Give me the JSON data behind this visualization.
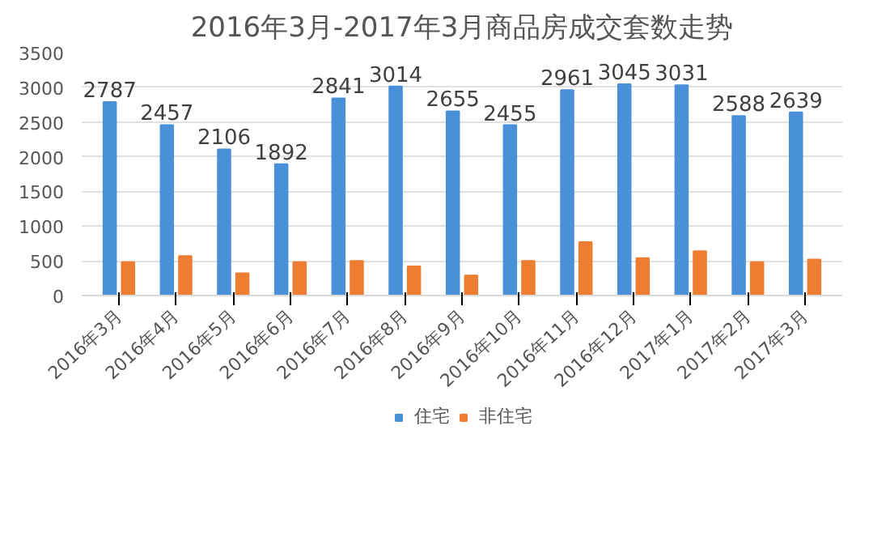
{
  "chart_data": {
    "type": "bar",
    "title": "2016年3月-2017年3月商品房成交套数走势",
    "categories": [
      "2016年3月",
      "2016年4月",
      "2016年5月",
      "2016年6月",
      "2016年7月",
      "2016年8月",
      "2016年9月",
      "2016年10月",
      "2016年11月",
      "2016年12月",
      "2017年1月",
      "2017年2月",
      "2017年3月"
    ],
    "series": [
      {
        "name": "住宅",
        "color": "#4a90d9",
        "values": [
          2787,
          2457,
          2106,
          1892,
          2841,
          3014,
          2655,
          2455,
          2961,
          3045,
          3031,
          2588,
          2639
        ],
        "value_labels": [
          "2787",
          "2457",
          "2106",
          "1892",
          "2841",
          "3014",
          "2655",
          "2455",
          "2961",
          "3045",
          "3031",
          "2588",
          "2639"
        ]
      },
      {
        "name": "非住宅",
        "color": "#ed7d31",
        "values": [
          480,
          570,
          320,
          480,
          500,
          420,
          290,
          500,
          770,
          540,
          640,
          480,
          520
        ]
      }
    ],
    "ylim": [
      0,
      3500
    ],
    "yticks": [
      0,
      500,
      1000,
      1500,
      2000,
      2500,
      3000,
      3500
    ],
    "grid": "y",
    "legend": "bottom"
  }
}
